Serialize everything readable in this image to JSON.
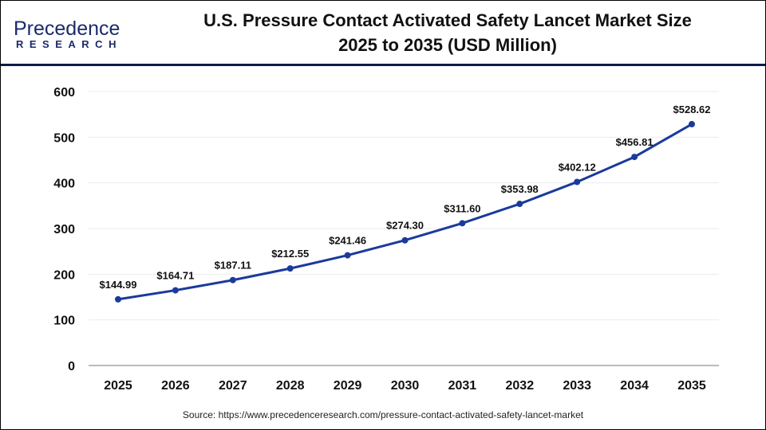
{
  "logo": {
    "line1": "Precedence",
    "line2": "RESEARCH"
  },
  "title_lines": [
    "U.S. Pressure Contact Activated Safety Lancet Market Size",
    "2025 to 2035 (USD Million)"
  ],
  "source": "Source: https://www.precedenceresearch.com/pressure-contact-activated-safety-lancet-market",
  "chart_data": {
    "type": "line",
    "title": "U.S. Pressure Contact Activated Safety Lancet Market Size 2025 to 2035 (USD Million)",
    "categories": [
      "2025",
      "2026",
      "2027",
      "2028",
      "2029",
      "2030",
      "2031",
      "2032",
      "2033",
      "2034",
      "2035"
    ],
    "values": [
      144.99,
      164.71,
      187.11,
      212.55,
      241.46,
      274.3,
      311.6,
      353.98,
      402.12,
      456.81,
      528.62
    ],
    "data_labels": [
      "$144.99",
      "$164.71",
      "$187.11",
      "$212.55",
      "$241.46",
      "$274.30",
      "$311.60",
      "$353.98",
      "$402.12",
      "$456.81",
      "$528.62"
    ],
    "yticks": [
      0,
      100,
      200,
      300,
      400,
      500,
      600
    ],
    "ylim": [
      0,
      600
    ],
    "xlabel": "",
    "ylabel": "",
    "grid": true,
    "line_color": "#1a3a9c"
  }
}
